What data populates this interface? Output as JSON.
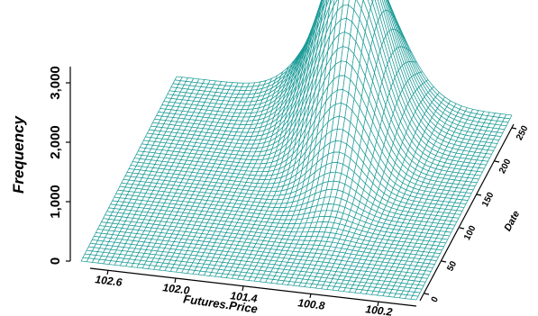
{
  "chart_data": {
    "type": "surface",
    "zlabel": "Frequency",
    "xlabel": "Futures.Price",
    "ylabel": "Date",
    "zlim": [
      0,
      3300
    ],
    "xlim": [
      102.9,
      100.0
    ],
    "ylim": [
      0,
      260
    ],
    "z_ticks": [
      {
        "value": 0,
        "label": "0"
      },
      {
        "value": 1000,
        "label": "1,000"
      },
      {
        "value": 2000,
        "label": "2,000"
      },
      {
        "value": 3000,
        "label": "3,000"
      }
    ],
    "x_ticks": [
      {
        "value": 102.6,
        "label": "102.6"
      },
      {
        "value": 102.0,
        "label": "102.0"
      },
      {
        "value": 101.4,
        "label": "101.4"
      },
      {
        "value": 100.8,
        "label": "100.8"
      },
      {
        "value": 100.2,
        "label": "100.2"
      }
    ],
    "y_ticks": [
      {
        "value": 0,
        "label": "0"
      },
      {
        "value": 50,
        "label": "50"
      },
      {
        "value": 100,
        "label": "100"
      },
      {
        "value": 150,
        "label": "150"
      },
      {
        "value": 200,
        "label": "200"
      },
      {
        "value": 250,
        "label": "250"
      }
    ],
    "surface": {
      "description_of_shape": "single ridge",
      "peak_frequency": 3200,
      "peak_price_at_date_0": 100.85,
      "peak_price_at_date_250": 101.3,
      "peak_date": 215,
      "mesh_color": "#1a9a96"
    }
  }
}
